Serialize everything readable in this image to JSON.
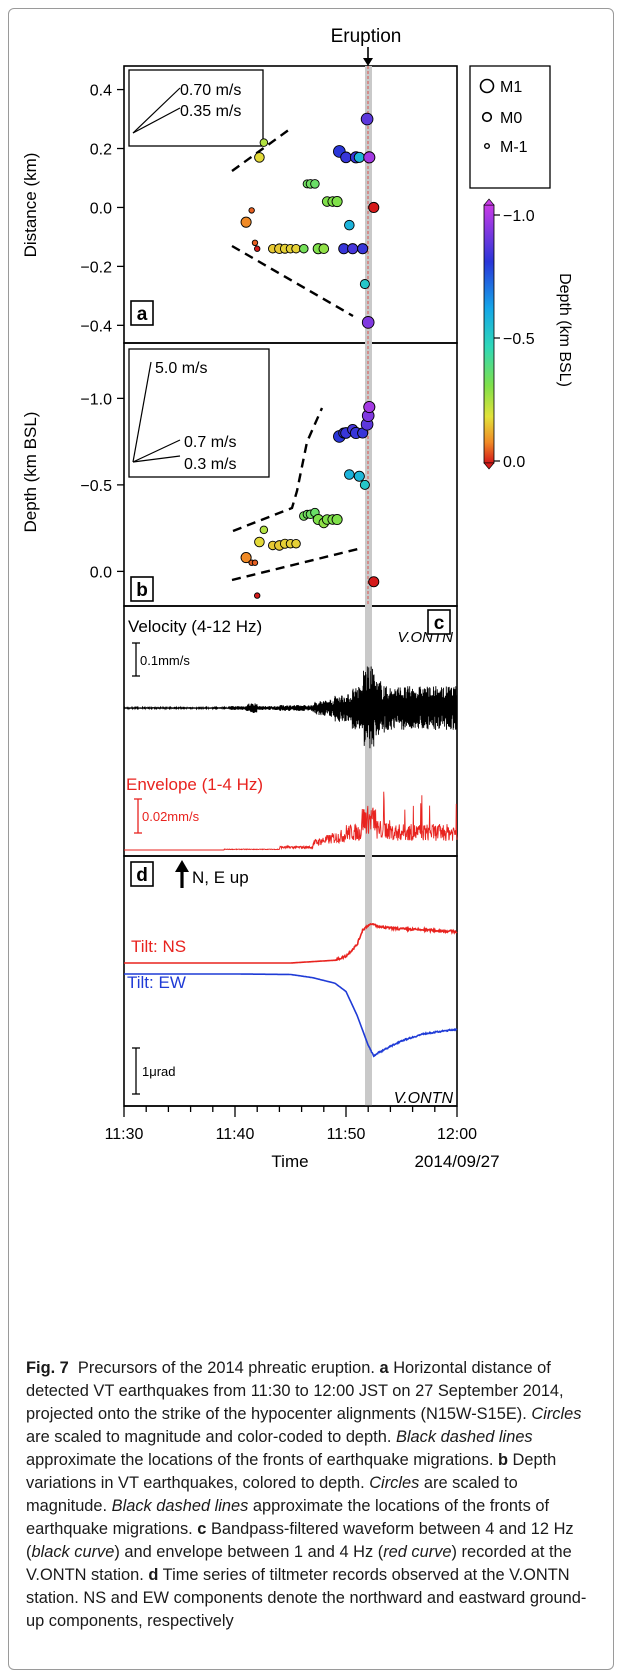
{
  "figure": {
    "eruption_label": "Eruption",
    "time_axis": {
      "label": "Time",
      "date": "2014/09/27",
      "ticks": [
        "11:30",
        "11:40",
        "11:50",
        "12:00"
      ],
      "range_minutes": [
        0,
        30
      ]
    },
    "eruption_time": "11:52",
    "panel_a": {
      "tag": "a",
      "ylabel": "Distance (km)",
      "yticks": [
        "0.4",
        "0.2",
        "0.0",
        "−0.2",
        "−0.4"
      ],
      "ylim": [
        -0.46,
        0.48
      ],
      "speed_labels": [
        "0.70 m/s",
        "0.35 m/s"
      ],
      "legend": [
        "M1",
        "M0",
        "M-1"
      ]
    },
    "panel_b": {
      "tag": "b",
      "ylabel": "Depth (km BSL)",
      "yticks": [
        "−1.0",
        "−0.5",
        "0.0"
      ],
      "ylim": [
        -1.32,
        0.2
      ],
      "speed_labels": [
        "5.0 m/s",
        "0.7 m/s",
        "0.3 m/s"
      ]
    },
    "panel_c": {
      "tag": "c",
      "velocity_label": "Velocity (4-12 Hz)",
      "velocity_scale": "0.1mm/s",
      "station": "V.ONTN",
      "envelope_label": "Envelope (1-4 Hz)",
      "envelope_scale": "0.02mm/s"
    },
    "panel_d": {
      "tag": "d",
      "direction_label": "N, E up",
      "ns_label": "Tilt: NS",
      "ew_label": "Tilt: EW",
      "scale_label": "1μrad",
      "station": "V.ONTN"
    },
    "colorbar": {
      "title": "Depth (km BSL)",
      "ticks": [
        "−1.0",
        "−0.5",
        "0.0"
      ],
      "range": [
        -1.0,
        0.0
      ]
    },
    "colors": {
      "velocity": "#000000",
      "envelope": "#e8231f",
      "tilt_ns": "#e8231f",
      "tilt_ew": "#1f3bd6",
      "eruption_band": "#c9c9c9",
      "eruption_line": "#d9534f"
    }
  },
  "caption": {
    "fig_label": "Fig. 7",
    "title": "Precursors of the 2014 phreatic eruption.",
    "a_label": "a",
    "a_text1": "Horizontal distance of detected VT earthquakes from 11:30 to 12:00 JST on 27 September 2014, projected onto the strike of the hypocenter alignments (N15W-S15E).",
    "a_circles": "Circles",
    "a_text2": "are scaled to magnitude and color-coded to depth.",
    "a_dashed": "Black dashed lines",
    "a_text3": "approximate the locations of the fronts of earthquake migrations.",
    "b_label": "b",
    "b_text1": "Depth variations in VT earthquakes, colored to depth.",
    "b_circles": "Circles",
    "b_text2": "are scaled to magnitude.",
    "b_dashed": "Black dashed lines",
    "b_text3": "approximate the locations of the fronts of earthquake migrations.",
    "c_label": "c",
    "c_text1": "Bandpass-filtered waveform between 4 and 12 Hz (",
    "c_black": "black curve",
    "c_text2": ") and envelope between 1 and 4 Hz (",
    "c_red": "red curve",
    "c_text3": ") recorded at the V.ONTN station.",
    "d_label": "d",
    "d_text": "Time series of tiltmeter records observed at the V.ONTN station. NS and EW components denote the northward and eastward ground-up components, respectively"
  },
  "chart_data": [
    {
      "type": "scatter",
      "panel": "a",
      "xlabel": "Time",
      "ylabel": "Distance (km)",
      "x_range_minutes_after_1130": [
        0,
        30
      ],
      "ylim": [
        -0.46,
        0.48
      ],
      "size_legend": [
        "M1",
        "M0",
        "M-1"
      ],
      "points": [
        {
          "t": 11.0,
          "d": -0.05,
          "depth": -0.08,
          "m": 0.3
        },
        {
          "t": 11.5,
          "d": -0.01,
          "depth": -0.05,
          "m": -0.6
        },
        {
          "t": 11.8,
          "d": -0.12,
          "depth": -0.05,
          "m": -0.6
        },
        {
          "t": 12.0,
          "d": -0.14,
          "depth": 0.14,
          "m": -0.6
        },
        {
          "t": 12.2,
          "d": 0.17,
          "depth": -0.17,
          "m": 0.2
        },
        {
          "t": 12.6,
          "d": 0.22,
          "depth": -0.24,
          "m": -0.2
        },
        {
          "t": 13.4,
          "d": -0.14,
          "depth": -0.15,
          "m": 0.0
        },
        {
          "t": 14.0,
          "d": -0.14,
          "depth": -0.15,
          "m": 0.2
        },
        {
          "t": 14.5,
          "d": -0.14,
          "depth": -0.16,
          "m": 0.1
        },
        {
          "t": 15.0,
          "d": -0.14,
          "depth": -0.16,
          "m": 0.0
        },
        {
          "t": 15.5,
          "d": -0.14,
          "depth": -0.16,
          "m": 0.0
        },
        {
          "t": 16.2,
          "d": -0.14,
          "depth": -0.32,
          "m": 0.0
        },
        {
          "t": 16.5,
          "d": 0.08,
          "depth": -0.33,
          "m": -0.1
        },
        {
          "t": 16.8,
          "d": 0.08,
          "depth": -0.33,
          "m": 0.0
        },
        {
          "t": 17.2,
          "d": 0.08,
          "depth": -0.34,
          "m": 0.0
        },
        {
          "t": 17.5,
          "d": -0.14,
          "depth": -0.3,
          "m": 0.3
        },
        {
          "t": 18.0,
          "d": -0.14,
          "depth": -0.28,
          "m": 0.2
        },
        {
          "t": 18.3,
          "d": 0.02,
          "depth": -0.3,
          "m": 0.2
        },
        {
          "t": 18.8,
          "d": 0.02,
          "depth": -0.3,
          "m": 0.2
        },
        {
          "t": 19.2,
          "d": 0.02,
          "depth": -0.3,
          "m": 0.3
        },
        {
          "t": 19.4,
          "d": 0.19,
          "depth": -0.78,
          "m": 0.6
        },
        {
          "t": 19.8,
          "d": -0.14,
          "depth": -0.8,
          "m": 0.3
        },
        {
          "t": 20.0,
          "d": 0.17,
          "depth": -0.8,
          "m": 0.4
        },
        {
          "t": 20.3,
          "d": -0.06,
          "depth": -0.56,
          "m": 0.2
        },
        {
          "t": 20.6,
          "d": -0.14,
          "depth": -0.82,
          "m": 0.3
        },
        {
          "t": 20.9,
          "d": 0.17,
          "depth": -0.8,
          "m": 0.5
        },
        {
          "t": 21.2,
          "d": 0.17,
          "depth": -0.55,
          "m": 0.3
        },
        {
          "t": 21.5,
          "d": -0.14,
          "depth": -0.8,
          "m": 0.3
        },
        {
          "t": 21.7,
          "d": -0.26,
          "depth": -0.5,
          "m": 0.1
        },
        {
          "t": 21.9,
          "d": 0.3,
          "depth": -0.85,
          "m": 0.6
        },
        {
          "t": 22.0,
          "d": -0.39,
          "depth": -0.9,
          "m": 0.6
        },
        {
          "t": 22.1,
          "d": 0.17,
          "depth": -0.95,
          "m": 0.5
        },
        {
          "t": 22.5,
          "d": 0.0,
          "depth": 0.06,
          "m": 0.3
        }
      ]
    },
    {
      "type": "line",
      "panel": "c",
      "series": [
        {
          "name": "Velocity (4-12 Hz)",
          "note": "bursts growing after 11:44, peak near 11:52"
        },
        {
          "name": "Envelope (1-4 Hz)",
          "note": "rises from 11:45, peaks after 11:51"
        }
      ]
    },
    {
      "type": "line",
      "panel": "d",
      "series": [
        {
          "name": "Tilt: NS",
          "x_minutes": [
            0,
            15,
            19,
            20,
            21,
            21.5,
            22,
            22.5,
            23,
            25,
            27,
            30
          ],
          "y_urad": [
            0,
            0,
            0.06,
            0.15,
            0.4,
            0.72,
            0.82,
            0.84,
            0.78,
            0.74,
            0.72,
            0.68
          ]
        },
        {
          "name": "Tilt: EW",
          "x_minutes": [
            0,
            10,
            15,
            17,
            19,
            20,
            21,
            22,
            22.5,
            23,
            25,
            27,
            30
          ],
          "y_urad": [
            0,
            0,
            -0.01,
            -0.08,
            -0.2,
            -0.38,
            -0.9,
            -1.55,
            -1.78,
            -1.7,
            -1.45,
            -1.3,
            -1.2
          ]
        }
      ]
    }
  ]
}
